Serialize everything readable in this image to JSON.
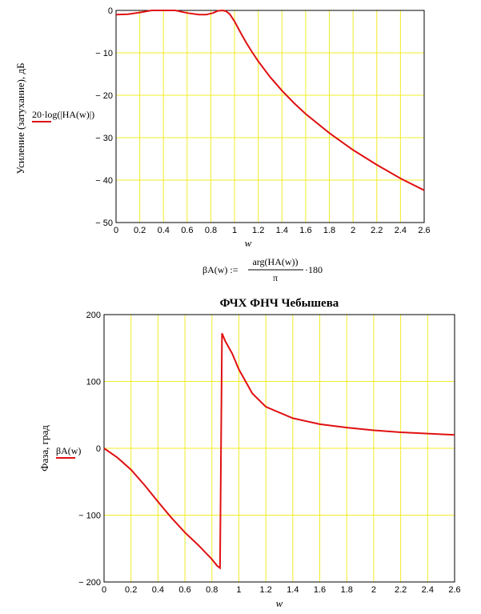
{
  "formula": {
    "lhs": "βA(w) :=",
    "numerator": "arg(HA(w))",
    "denominator": "π",
    "tail": "·180"
  },
  "colors": {
    "grid": "#f2ec2a",
    "trace": "#e01010",
    "axis": "#000000"
  },
  "chart_data": [
    {
      "type": "line",
      "title": "",
      "xlabel": "w",
      "ylabel": "Усиление (затухание), дБ",
      "legend": "20·log(|HA(w)|)",
      "xlim": [
        0,
        2.6
      ],
      "ylim": [
        -50,
        0
      ],
      "xticks": [
        0,
        0.2,
        0.4,
        0.6,
        0.8,
        1,
        1.2,
        1.4,
        1.6,
        1.8,
        2,
        2.2,
        2.4,
        2.6
      ],
      "xtick_labels": [
        "0",
        "0.2",
        "0.4",
        "0.6",
        "0.8",
        "1",
        "1.2",
        "1.4",
        "1.6",
        "1.8",
        "2",
        "2.2",
        "2.4",
        "2.6"
      ],
      "yticks": [
        0,
        -10,
        -20,
        -30,
        -40,
        -50
      ],
      "ytick_labels": [
        "0",
        "− 10",
        "− 20",
        "− 30",
        "− 40",
        "− 50"
      ],
      "grid": true,
      "series": [
        {
          "x": [
            0,
            0.1,
            0.2,
            0.3,
            0.4,
            0.5,
            0.6,
            0.7,
            0.76,
            0.82,
            0.86,
            0.9,
            0.93,
            0.96,
            1.0,
            1.05,
            1.1,
            1.15,
            1.2,
            1.3,
            1.4,
            1.5,
            1.6,
            1.8,
            2.0,
            2.2,
            2.4,
            2.6
          ],
          "y": [
            -1,
            -0.9,
            -0.5,
            0,
            0.3,
            0,
            -0.6,
            -1.0,
            -1.0,
            -0.6,
            -0.1,
            0.1,
            -0.2,
            -0.9,
            -2.6,
            -5.2,
            -7.7,
            -9.9,
            -12.0,
            -15.7,
            -18.9,
            -21.8,
            -24.4,
            -28.9,
            -32.9,
            -36.4,
            -39.6,
            -42.4
          ]
        }
      ]
    },
    {
      "type": "line",
      "title": "ФЧХ ФНЧ Чебышева",
      "xlabel": "w",
      "ylabel": "Фаза, град",
      "legend": "βA(w)",
      "xlim": [
        0,
        2.6
      ],
      "ylim": [
        -200,
        200
      ],
      "xticks": [
        0,
        0.2,
        0.4,
        0.6,
        0.8,
        1,
        1.2,
        1.4,
        1.6,
        1.8,
        2,
        2.2,
        2.4,
        2.6
      ],
      "xtick_labels": [
        "0",
        "0.2",
        "0.4",
        "0.6",
        "0.8",
        "1",
        "1.2",
        "1.4",
        "1.6",
        "1.8",
        "2",
        "2.2",
        "2.4",
        "2.6"
      ],
      "yticks": [
        200,
        100,
        0,
        -100,
        -200
      ],
      "ytick_labels": [
        "200",
        "100",
        "0",
        "− 100",
        "− 200"
      ],
      "grid": true,
      "series": [
        {
          "x": [
            0,
            0.1,
            0.2,
            0.3,
            0.4,
            0.5,
            0.6,
            0.7,
            0.8,
            0.84,
            0.86,
            0.875,
            0.9,
            0.95,
            1.0,
            1.1,
            1.2,
            1.4,
            1.6,
            1.8,
            2.0,
            2.2,
            2.4,
            2.6
          ],
          "y": [
            0,
            -14,
            -32,
            -55,
            -80,
            -104,
            -126,
            -145,
            -166,
            -176,
            -179,
            172,
            160,
            142,
            118,
            82,
            62,
            45,
            36,
            31,
            27,
            24,
            22,
            20
          ]
        }
      ]
    }
  ]
}
